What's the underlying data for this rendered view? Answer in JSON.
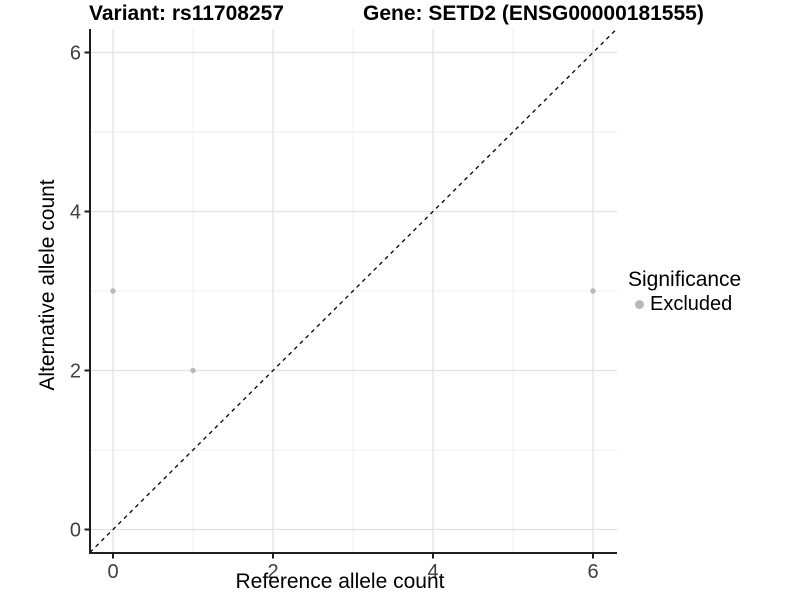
{
  "title": {
    "variant": "Variant: rs11708257",
    "gene": "Gene: SETD2 (ENSG00000181555)"
  },
  "axes": {
    "x_label": "Reference allele count",
    "y_label": "Alternative allele count"
  },
  "legend": {
    "title": "Significance",
    "items": [
      {
        "label": "Excluded",
        "color": "#b8b8b8"
      }
    ]
  },
  "chart_data": {
    "type": "scatter",
    "title": "Variant: rs11708257 — Gene: SETD2 (ENSG00000181555)",
    "xlabel": "Reference allele count",
    "ylabel": "Alternative allele count",
    "xlim": [
      -0.3,
      6.3
    ],
    "ylim": [
      -0.3,
      6.3
    ],
    "x_ticks": [
      0,
      2,
      4,
      6
    ],
    "y_ticks": [
      0,
      2,
      4,
      6
    ],
    "minor_ticks": [
      1,
      3,
      5
    ],
    "grid": true,
    "legend_position": "right",
    "identity_line": {
      "style": "dashed",
      "color": "#000000",
      "slope": 1,
      "intercept": 0
    },
    "series": [
      {
        "name": "Excluded",
        "color": "#b8b8b8",
        "points": [
          [
            0,
            3
          ],
          [
            1,
            2
          ],
          [
            6,
            3
          ]
        ]
      }
    ]
  },
  "colors": {
    "background": "#ffffff",
    "grid_major": "#e2e2e2",
    "grid_minor": "#efefef",
    "axis_line": "#1f1f1f",
    "tick_text": "#404040",
    "point": "#b8b8b8"
  }
}
